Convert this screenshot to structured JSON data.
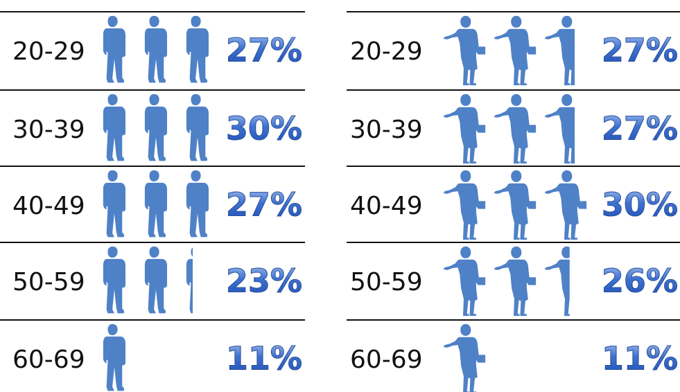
{
  "chart_data": [
    {
      "type": "pictograph",
      "categories": [
        "20-29",
        "30-39",
        "40-49",
        "50-59",
        "60-69"
      ],
      "values": [
        27,
        30,
        27,
        23,
        11
      ],
      "value_labels": [
        "27%",
        "30%",
        "27%",
        "23%",
        "11%"
      ],
      "color": "#4f81c7"
    },
    {
      "type": "pictograph",
      "categories": [
        "20-29",
        "30-39",
        "40-49",
        "50-59",
        "60-69"
      ],
      "values": [
        27,
        27,
        30,
        26,
        11
      ],
      "value_labels": [
        "27%",
        "27%",
        "30%",
        "26%",
        "11%"
      ],
      "color": "#4f81c7"
    }
  ]
}
